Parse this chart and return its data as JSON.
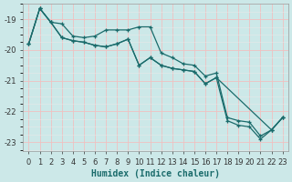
{
  "xlabel": "Humidex (Indice chaleur)",
  "bg_color": "#cce8e8",
  "grid_color_major": "#f0c0c0",
  "grid_color_minor": "#e8e8e8",
  "line_color": "#1a6b6b",
  "series1_x": [
    0,
    1,
    2,
    3,
    4,
    5,
    6,
    7,
    8,
    9,
    10,
    11,
    12,
    13,
    14,
    15,
    16,
    17,
    18,
    19,
    20,
    21,
    22,
    23
  ],
  "series1_y": [
    -19.8,
    -18.65,
    -19.1,
    -19.15,
    -19.55,
    -19.6,
    -19.55,
    -19.35,
    -19.35,
    -19.35,
    -19.25,
    -19.25,
    -20.1,
    -20.25,
    -20.45,
    -20.5,
    -20.85,
    -20.75,
    -22.2,
    -22.3,
    -22.35,
    -22.8,
    -22.6,
    -22.2
  ],
  "series2_x": [
    0,
    1,
    2,
    3,
    4,
    5,
    6,
    7,
    8,
    9,
    10,
    11,
    12,
    13,
    14,
    15,
    16,
    17,
    18,
    19,
    20,
    21,
    22,
    23
  ],
  "series2_y": [
    -19.8,
    -18.65,
    -19.1,
    -19.6,
    -19.7,
    -19.75,
    -19.85,
    -19.9,
    -19.8,
    -19.65,
    -20.5,
    -20.25,
    -20.5,
    -20.6,
    -20.65,
    -20.7,
    -21.1,
    -20.9,
    -22.3,
    -22.45,
    -22.5,
    -22.9,
    -22.6,
    -22.2
  ],
  "series3_x": [
    0,
    1,
    2,
    3,
    4,
    5,
    6,
    7,
    8,
    9,
    10,
    11,
    12,
    13,
    14,
    15,
    16,
    17,
    22,
    23
  ],
  "series3_y": [
    -19.8,
    -18.65,
    -19.1,
    -19.6,
    -19.7,
    -19.75,
    -19.85,
    -19.9,
    -19.8,
    -19.65,
    -20.5,
    -20.25,
    -20.5,
    -20.6,
    -20.65,
    -20.7,
    -21.1,
    -20.9,
    -22.6,
    -22.2
  ],
  "ylim": [
    -23.3,
    -18.5
  ],
  "xlim": [
    -0.5,
    23.5
  ],
  "yticks": [
    -23,
    -22,
    -21,
    -20,
    -19
  ],
  "xtick_labels": [
    "0",
    "1",
    "2",
    "3",
    "4",
    "5",
    "6",
    "7",
    "8",
    "9",
    "10",
    "11",
    "12",
    "13",
    "14",
    "15",
    "16",
    "17",
    "18",
    "19",
    "20",
    "21",
    "22",
    "23"
  ],
  "label_fontsize": 7,
  "tick_fontsize": 6
}
